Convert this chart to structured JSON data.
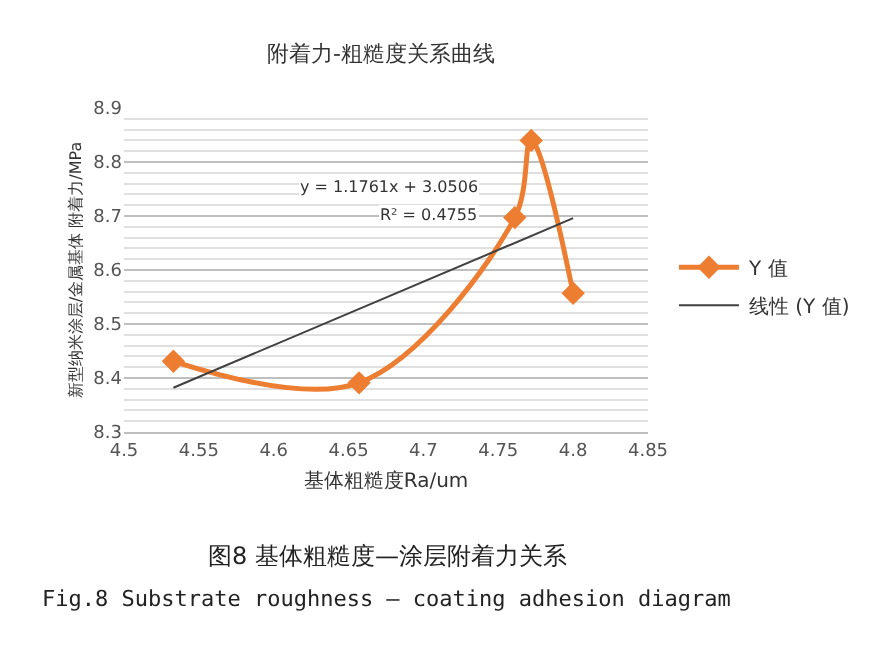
{
  "chart_data": {
    "type": "line",
    "title": "附着力-粗糙度关系曲线",
    "xlabel": "基体粗糙度Ra/um",
    "ylabel": "新型纳米涂层/金属基体 附着力/MPa",
    "series": [
      {
        "name": "Y 值",
        "color": "#ed7d31",
        "x": [
          4.533,
          4.657,
          4.761,
          4.772,
          4.8
        ],
        "values": [
          8.431,
          8.391,
          8.697,
          8.84,
          8.557
        ],
        "marker": "diamond",
        "line_style": "solid"
      },
      {
        "name": "线性 (Y 值)",
        "color": "#404040",
        "x": [
          4.533,
          4.8
        ],
        "values": [
          8.382,
          8.696
        ],
        "marker": "none",
        "line_style": "solid"
      }
    ],
    "xlim": [
      4.5,
      4.85
    ],
    "xticks": [
      4.5,
      4.55,
      4.6,
      4.65,
      4.7,
      4.75,
      4.8,
      4.85
    ],
    "ylim": [
      8.3,
      8.9
    ],
    "yticks": [
      8.3,
      8.4,
      8.5,
      8.6,
      8.7,
      8.8,
      8.9
    ],
    "grid": "y",
    "legend": "right",
    "annotations": [
      "y = 1.1761x + 3.0506",
      "R² = 0.4755",
      "图8 基体粗糙度—涂层附着力关系",
      "Fig.8 Substrate roughness — coating adhesion diagram"
    ]
  }
}
